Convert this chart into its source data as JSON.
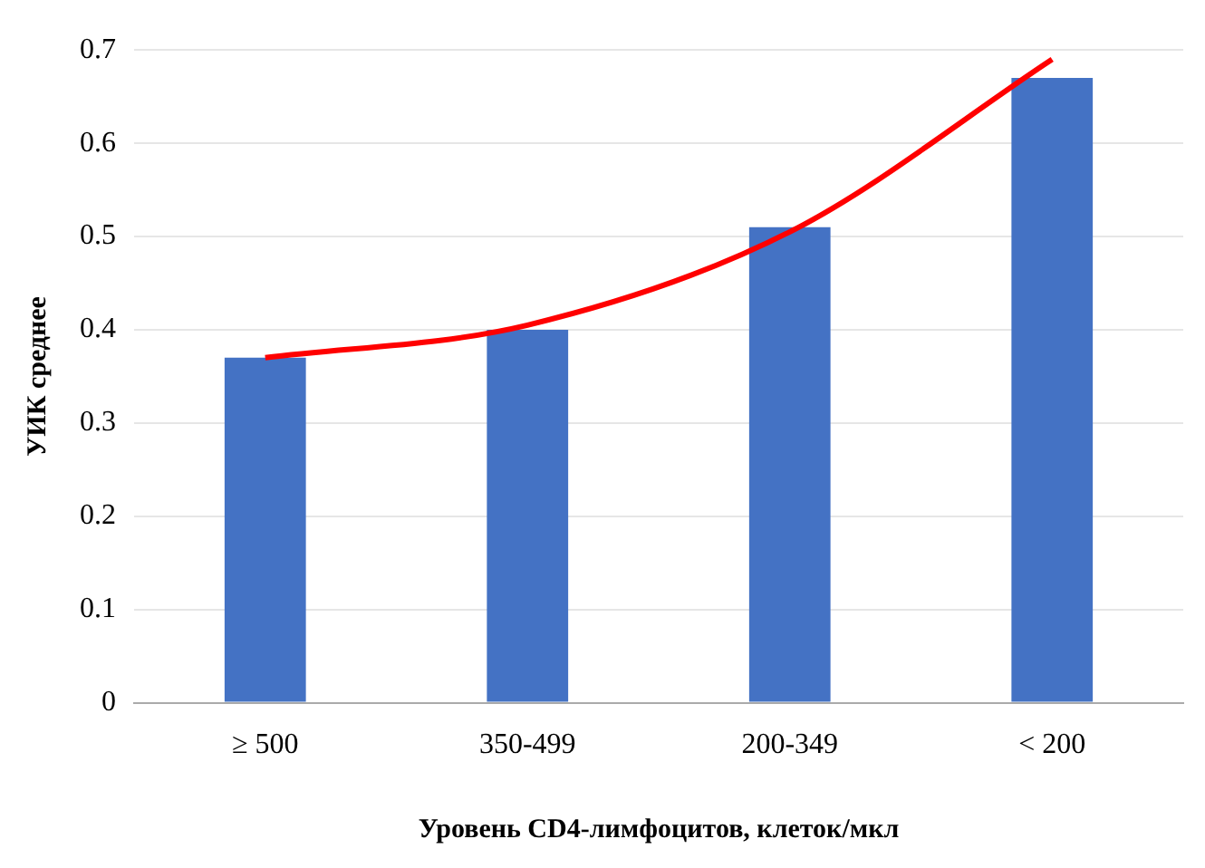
{
  "chart_data": {
    "type": "bar",
    "xlabel": "Уровень CD4-лимфоцитов, клеток/мкл",
    "ylabel": "УИК среднее",
    "categories": [
      "≥ 500",
      "350-499",
      "200-349",
      "< 200"
    ],
    "series": [
      {
        "color": "#4472c4",
        "values": [
          0.37,
          0.4,
          0.51,
          0.67
        ]
      },
      {
        "type": "line",
        "color": "#ff0000",
        "values": [
          0.37,
          0.405,
          0.505,
          0.69
        ],
        "marker": "none"
      }
    ],
    "ylim": [
      0,
      0.7
    ],
    "yticks": [
      0,
      0.1,
      0.2,
      0.3,
      0.4,
      0.5,
      0.6,
      0.7
    ],
    "grid": "y",
    "legend": false
  }
}
